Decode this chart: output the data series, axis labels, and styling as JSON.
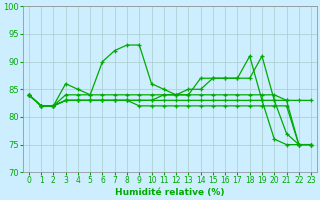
{
  "xlabel": "Humidité relative (%)",
  "xlim": [
    -0.5,
    23.5
  ],
  "ylim": [
    70,
    100
  ],
  "yticks": [
    70,
    75,
    80,
    85,
    90,
    95,
    100
  ],
  "xticks": [
    0,
    1,
    2,
    3,
    4,
    5,
    6,
    7,
    8,
    9,
    10,
    11,
    12,
    13,
    14,
    15,
    16,
    17,
    18,
    19,
    20,
    21,
    22,
    23
  ],
  "background_color": "#cceeff",
  "grid_color": "#aacccc",
  "line_color": "#00aa00",
  "lines": [
    {
      "x": [
        0,
        1,
        2,
        3,
        4,
        5,
        6,
        7,
        8,
        9,
        10,
        11,
        12,
        13,
        14,
        15,
        16,
        17,
        18,
        19,
        20,
        21,
        22,
        23
      ],
      "y": [
        84,
        82,
        82,
        86,
        85,
        84,
        90,
        92,
        93,
        93,
        86,
        85,
        84,
        84,
        87,
        87,
        87,
        87,
        91,
        83,
        76,
        75,
        75,
        75
      ]
    },
    {
      "x": [
        0,
        1,
        2,
        3,
        4,
        5,
        6,
        7,
        8,
        9,
        10,
        11,
        12,
        13,
        14,
        15,
        16,
        17,
        18,
        19,
        20,
        21,
        22,
        23
      ],
      "y": [
        84,
        82,
        82,
        84,
        84,
        84,
        84,
        84,
        84,
        84,
        84,
        84,
        84,
        84,
        84,
        84,
        84,
        84,
        84,
        84,
        84,
        83,
        75,
        75
      ]
    },
    {
      "x": [
        0,
        1,
        2,
        3,
        4,
        5,
        6,
        7,
        8,
        9,
        10,
        11,
        12,
        13,
        14,
        15,
        16,
        17,
        18,
        19,
        20,
        21,
        22,
        23
      ],
      "y": [
        84,
        82,
        82,
        83,
        83,
        83,
        83,
        83,
        83,
        83,
        83,
        83,
        83,
        83,
        83,
        83,
        83,
        83,
        83,
        83,
        83,
        83,
        83,
        83
      ]
    },
    {
      "x": [
        0,
        1,
        2,
        3,
        4,
        5,
        6,
        7,
        8,
        9,
        10,
        11,
        12,
        13,
        14,
        15,
        16,
        17,
        18,
        19,
        20,
        21,
        22,
        23
      ],
      "y": [
        84,
        82,
        82,
        83,
        83,
        83,
        83,
        83,
        83,
        83,
        83,
        84,
        84,
        85,
        85,
        87,
        87,
        87,
        87,
        91,
        83,
        77,
        75,
        75
      ]
    },
    {
      "x": [
        0,
        1,
        2,
        3,
        4,
        5,
        6,
        7,
        8,
        9,
        10,
        11,
        12,
        13,
        14,
        15,
        16,
        17,
        18,
        19,
        20,
        21,
        22,
        23
      ],
      "y": [
        84,
        82,
        82,
        83,
        83,
        83,
        83,
        83,
        83,
        82,
        82,
        82,
        82,
        82,
        82,
        82,
        82,
        82,
        82,
        82,
        82,
        82,
        75,
        75
      ]
    }
  ]
}
